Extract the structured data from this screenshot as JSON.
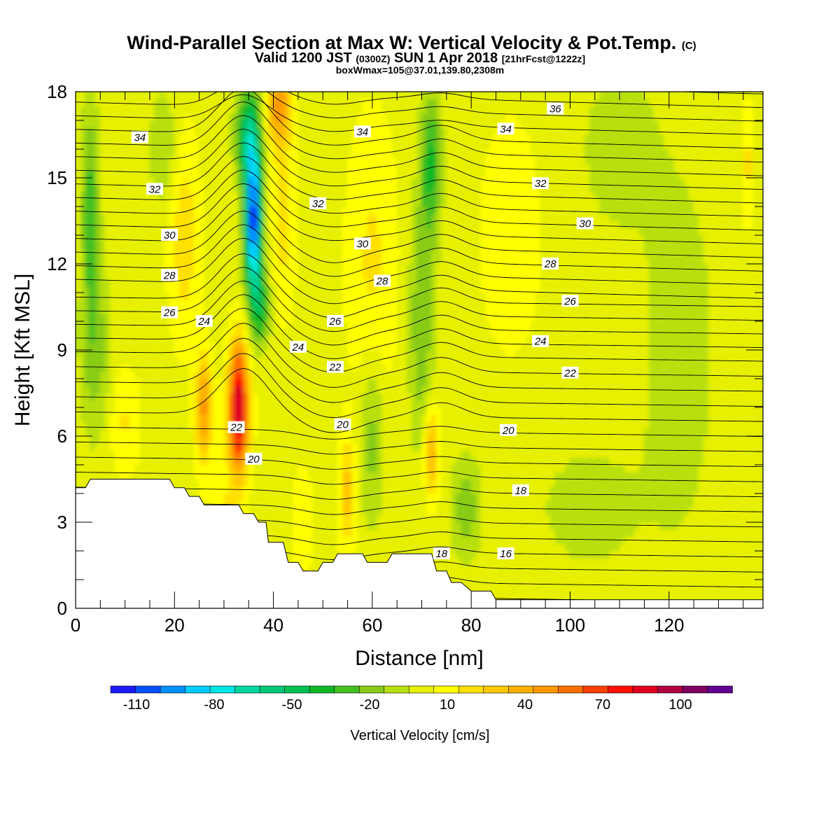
{
  "chart_data": {
    "type": "heatmap",
    "title": "Wind-Parallel Section at Max W: Vertical Velocity & Pot.Temp.",
    "title_mark": "(C)",
    "subtitle_parts": [
      "Valid 1200 JST",
      "(0300Z)",
      "SUN 1 Apr 2018",
      "[21hrFcst@1222z]"
    ],
    "subtitle2": "boxWmax=105@37.01,139.80,2308m",
    "xlabel": "Distance [nm]",
    "ylabel": "Height [Kft MSL]",
    "xlim": [
      0,
      139
    ],
    "ylim": [
      0,
      18
    ],
    "xticks": [
      "0",
      "20",
      "40",
      "60",
      "80",
      "100",
      "120"
    ],
    "yticks": [
      "0",
      "3",
      "6",
      "9",
      "12",
      "15",
      "18"
    ],
    "grid": false,
    "colorbar": {
      "label": "Vertical Velocity [cm/s]",
      "tick_labels": [
        "-110",
        "-80",
        "-50",
        "-20",
        "10",
        "40",
        "70",
        "100"
      ],
      "bins": [
        -120,
        -110,
        -100,
        -90,
        -80,
        -70,
        -60,
        -50,
        -40,
        -30,
        -20,
        -10,
        0,
        10,
        20,
        30,
        40,
        50,
        60,
        70,
        80,
        90,
        100,
        110,
        120
      ],
      "colors": [
        "#1a1aff",
        "#0050ff",
        "#0090ff",
        "#00ccff",
        "#00e5e5",
        "#00d6a0",
        "#00c878",
        "#00c050",
        "#10b828",
        "#44c020",
        "#88cc18",
        "#b8e010",
        "#e6f000",
        "#ffff00",
        "#ffe000",
        "#ffc800",
        "#ffb000",
        "#ff9800",
        "#ff7000",
        "#ff4000",
        "#ff1000",
        "#e00020",
        "#b00040",
        "#800060",
        "#600090"
      ]
    },
    "velocity_features": [
      {
        "kind": "updraft",
        "x": 33,
        "y": 7.0,
        "peak": 105
      },
      {
        "kind": "updraft",
        "x": 26,
        "y": 7.0,
        "peak": 55
      },
      {
        "kind": "downdraft",
        "x": 36,
        "y": 13.5,
        "peak": -110
      },
      {
        "kind": "updraft",
        "x": 41,
        "y": 17.5,
        "peak": 50
      },
      {
        "kind": "downdraft",
        "x": 72,
        "y": 15.5,
        "peak": -40
      },
      {
        "kind": "updraft",
        "x": 72,
        "y": 5.5,
        "peak": 45
      },
      {
        "kind": "downdraft",
        "x": 3,
        "y": 14.0,
        "peak": -30
      }
    ],
    "potential_temperature": {
      "levels": [
        16,
        18,
        20,
        22,
        24,
        26,
        28,
        30,
        32,
        34,
        36
      ],
      "contour_labels": [
        {
          "text": "34",
          "x": 13,
          "y": 16.4
        },
        {
          "text": "32",
          "x": 16,
          "y": 14.6
        },
        {
          "text": "30",
          "x": 19,
          "y": 13.0
        },
        {
          "text": "28",
          "x": 19,
          "y": 11.6
        },
        {
          "text": "26",
          "x": 19,
          "y": 10.3
        },
        {
          "text": "24",
          "x": 26,
          "y": 10.0
        },
        {
          "text": "22",
          "x": 32.5,
          "y": 6.3
        },
        {
          "text": "20",
          "x": 36,
          "y": 5.2
        },
        {
          "text": "36",
          "x": 97,
          "y": 17.4
        },
        {
          "text": "34",
          "x": 58,
          "y": 16.6
        },
        {
          "text": "34",
          "x": 87,
          "y": 16.7
        },
        {
          "text": "32",
          "x": 49,
          "y": 14.1
        },
        {
          "text": "32",
          "x": 94,
          "y": 14.8
        },
        {
          "text": "30",
          "x": 58,
          "y": 12.7
        },
        {
          "text": "30",
          "x": 103,
          "y": 13.4
        },
        {
          "text": "28",
          "x": 62,
          "y": 11.4
        },
        {
          "text": "28",
          "x": 96,
          "y": 12.0
        },
        {
          "text": "26",
          "x": 52.5,
          "y": 10.0
        },
        {
          "text": "26",
          "x": 100,
          "y": 10.7
        },
        {
          "text": "24",
          "x": 45,
          "y": 9.1
        },
        {
          "text": "24",
          "x": 94,
          "y": 9.3
        },
        {
          "text": "22",
          "x": 52.5,
          "y": 8.4
        },
        {
          "text": "22",
          "x": 100,
          "y": 8.2
        },
        {
          "text": "20",
          "x": 54,
          "y": 6.4
        },
        {
          "text": "20",
          "x": 87.5,
          "y": 6.2
        },
        {
          "text": "18",
          "x": 90,
          "y": 4.1
        },
        {
          "text": "18",
          "x": 74,
          "y": 1.9
        },
        {
          "text": "16",
          "x": 87,
          "y": 1.9
        }
      ]
    },
    "terrain_kft": [
      [
        0,
        4.2
      ],
      [
        2,
        4.2
      ],
      [
        3,
        4.5
      ],
      [
        8,
        4.5
      ],
      [
        19,
        4.5
      ],
      [
        20,
        4.2
      ],
      [
        22,
        4.2
      ],
      [
        23,
        3.9
      ],
      [
        25,
        3.9
      ],
      [
        26,
        3.6
      ],
      [
        33,
        3.6
      ],
      [
        34,
        3.3
      ],
      [
        36,
        3.3
      ],
      [
        37,
        3.0
      ],
      [
        38.5,
        3.0
      ],
      [
        39,
        2.3
      ],
      [
        42,
        2.3
      ],
      [
        43,
        1.6
      ],
      [
        45,
        1.6
      ],
      [
        46,
        1.3
      ],
      [
        49,
        1.3
      ],
      [
        50,
        1.6
      ],
      [
        52,
        1.6
      ],
      [
        53,
        1.9
      ],
      [
        58,
        1.9
      ],
      [
        59,
        1.6
      ],
      [
        63,
        1.6
      ],
      [
        64,
        1.9
      ],
      [
        72,
        1.9
      ],
      [
        73,
        1.3
      ],
      [
        75,
        1.3
      ],
      [
        76,
        0.9
      ],
      [
        78,
        0.9
      ],
      [
        80,
        0.6
      ],
      [
        84,
        0.6
      ],
      [
        85,
        0.3
      ],
      [
        139,
        0.3
      ]
    ]
  }
}
